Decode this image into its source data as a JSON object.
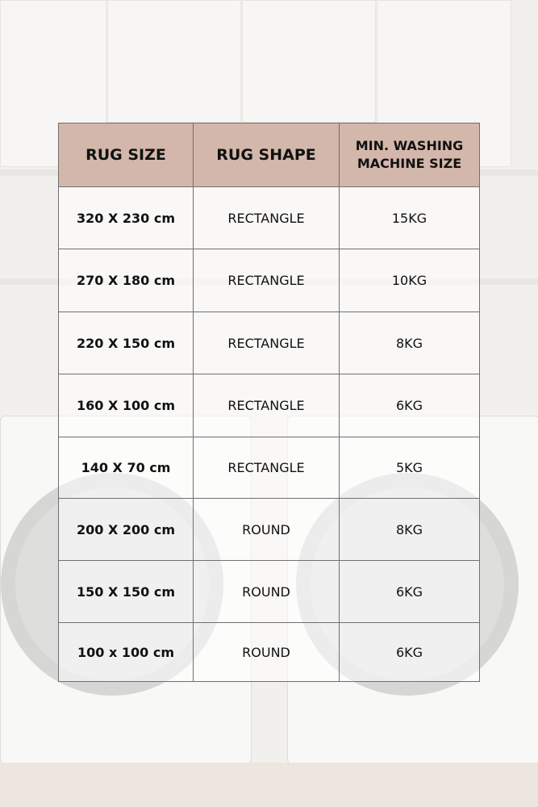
{
  "table": {
    "headers": [
      "RUG SIZE",
      "RUG SHAPE",
      "MIN. WASHING MACHINE SIZE"
    ],
    "rows": [
      {
        "size": "320 X 230 cm",
        "shape": "RECTANGLE",
        "machine": "15KG"
      },
      {
        "size": "270 X 180 cm",
        "shape": "RECTANGLE",
        "machine": "10KG"
      },
      {
        "size": "220 X 150 cm",
        "shape": "RECTANGLE",
        "machine": "8KG"
      },
      {
        "size": "160 X 100 cm",
        "shape": "RECTANGLE",
        "machine": "6KG"
      },
      {
        "size": "140 X 70 cm",
        "shape": "RECTANGLE",
        "machine": "5KG"
      },
      {
        "size": "200 X 200 cm",
        "shape": "ROUND",
        "machine": "8KG"
      },
      {
        "size": "150 X 150 cm",
        "shape": "ROUND",
        "machine": "6KG"
      },
      {
        "size": "100 x 100 cm",
        "shape": "ROUND",
        "machine": "6KG"
      }
    ]
  },
  "colors": {
    "header_bg": "#d3b7ab",
    "border": "#6f6f6f"
  }
}
